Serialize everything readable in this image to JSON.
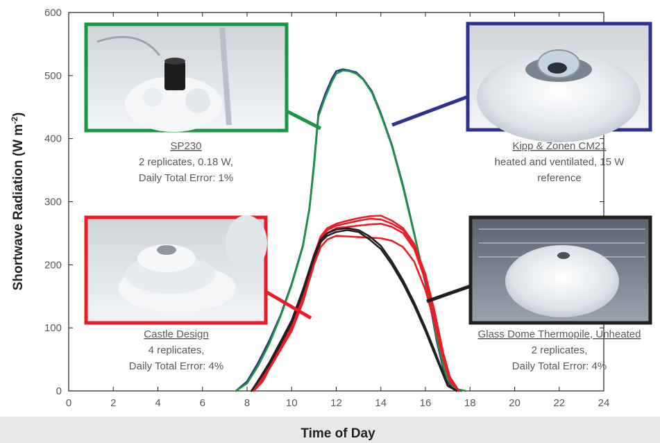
{
  "chart_data": {
    "type": "line",
    "xlabel": "Time of Day",
    "ylabel": "Shortwave Radiation (W m",
    "ylabel_sup": "-2",
    "ylabel_tail": ")",
    "xlim": [
      0,
      24
    ],
    "ylim": [
      0,
      600
    ],
    "xticks": [
      0,
      2,
      4,
      6,
      8,
      10,
      12,
      14,
      16,
      18,
      20,
      22,
      24
    ],
    "yticks": [
      0,
      100,
      200,
      300,
      400,
      500,
      600
    ],
    "grid": false,
    "series": [
      {
        "color": "#2e3192",
        "x": [
          7.5,
          8.0,
          8.5,
          9.0,
          9.5,
          10.0,
          10.5,
          10.8,
          11.0,
          11.2,
          11.5,
          11.8,
          12.0,
          12.3,
          12.6,
          12.9,
          13.2,
          13.6,
          14.0,
          14.5,
          15.0,
          15.5,
          16.0,
          16.3,
          16.5,
          16.8,
          17.0,
          17.3,
          17.6
        ],
        "y": [
          0,
          15,
          45,
          80,
          120,
          170,
          230,
          290,
          360,
          440,
          470,
          495,
          507,
          510,
          508,
          505,
          495,
          475,
          440,
          390,
          325,
          250,
          170,
          120,
          80,
          35,
          15,
          3,
          0
        ]
      },
      {
        "color": "#1a9641",
        "x": [
          7.5,
          8.0,
          8.5,
          9.0,
          9.5,
          10.0,
          10.5,
          10.8,
          11.0,
          11.2,
          11.5,
          11.8,
          12.0,
          12.3,
          12.6,
          12.9,
          13.2,
          13.6,
          14.0,
          14.5,
          15.0,
          15.5,
          16.0,
          16.3,
          16.5,
          16.8,
          17.0,
          17.3,
          17.8
        ],
        "y": [
          0,
          12,
          40,
          75,
          118,
          168,
          228,
          288,
          355,
          435,
          465,
          490,
          503,
          508,
          507,
          503,
          494,
          473,
          438,
          388,
          322,
          248,
          172,
          125,
          85,
          40,
          18,
          4,
          0
        ]
      },
      {
        "color": "#ed1c24",
        "x": [
          8.3,
          8.7,
          9.0,
          9.5,
          10.0,
          10.5,
          11.0,
          11.3,
          11.6,
          12.0,
          12.5,
          13.0,
          13.5,
          14.0,
          14.5,
          15.0,
          15.5,
          16.0,
          16.4,
          16.8,
          17.1,
          17.5
        ],
        "y": [
          0,
          15,
          35,
          65,
          95,
          140,
          200,
          228,
          240,
          246,
          245,
          244,
          243,
          242,
          238,
          228,
          205,
          160,
          110,
          50,
          15,
          0
        ]
      },
      {
        "color": "#ed1c24",
        "x": [
          8.3,
          8.7,
          9.0,
          9.5,
          10.0,
          10.5,
          11.0,
          11.3,
          11.6,
          12.0,
          12.5,
          13.0,
          13.5,
          14.0,
          14.5,
          15.0,
          15.5,
          16.0,
          16.4,
          16.8,
          17.1,
          17.5
        ],
        "y": [
          0,
          17,
          38,
          68,
          100,
          145,
          205,
          235,
          250,
          258,
          260,
          262,
          264,
          265,
          260,
          250,
          225,
          175,
          120,
          55,
          18,
          0
        ]
      },
      {
        "color": "#ed1c24",
        "x": [
          8.3,
          8.7,
          9.0,
          9.5,
          10.0,
          10.5,
          11.0,
          11.3,
          11.6,
          12.0,
          12.5,
          13.0,
          13.5,
          14.0,
          14.5,
          15.0,
          15.5,
          16.0,
          16.4,
          16.8,
          17.1,
          17.5
        ],
        "y": [
          0,
          18,
          40,
          70,
          103,
          150,
          210,
          240,
          255,
          262,
          266,
          270,
          273,
          272,
          265,
          255,
          230,
          180,
          125,
          58,
          20,
          0
        ]
      },
      {
        "color": "#ed1c24",
        "x": [
          8.3,
          8.7,
          9.0,
          9.5,
          10.0,
          10.5,
          11.0,
          11.3,
          11.6,
          12.0,
          12.5,
          13.0,
          13.5,
          14.0,
          14.5,
          15.0,
          15.5,
          16.0,
          16.4,
          16.8,
          17.1,
          17.5
        ],
        "y": [
          0,
          20,
          42,
          73,
          106,
          155,
          215,
          245,
          258,
          265,
          270,
          274,
          277,
          278,
          270,
          258,
          233,
          185,
          128,
          60,
          22,
          0
        ]
      },
      {
        "color": "#231f20",
        "x": [
          8.2,
          8.6,
          9.0,
          9.5,
          10.0,
          10.5,
          11.0,
          11.3,
          11.6,
          12.0,
          12.5,
          13.0,
          13.5,
          14.0,
          14.5,
          15.0,
          15.5,
          16.0,
          16.4,
          16.8,
          17.0,
          17.4
        ],
        "y": [
          0,
          22,
          45,
          78,
          112,
          160,
          215,
          240,
          250,
          256,
          258,
          255,
          245,
          230,
          205,
          175,
          140,
          100,
          65,
          28,
          10,
          0
        ]
      },
      {
        "color": "#231f20",
        "x": [
          8.2,
          8.6,
          9.0,
          9.5,
          10.0,
          10.5,
          11.0,
          11.3,
          11.6,
          12.0,
          12.5,
          13.0,
          13.5,
          14.0,
          14.5,
          15.0,
          15.5,
          16.0,
          16.4,
          16.8,
          17.0,
          17.4
        ],
        "y": [
          0,
          20,
          42,
          74,
          108,
          155,
          210,
          236,
          246,
          252,
          255,
          252,
          240,
          225,
          200,
          170,
          135,
          95,
          60,
          25,
          8,
          0
        ]
      }
    ],
    "annotations": [
      {
        "color": "#1a9641",
        "title": "SP230",
        "lines": [
          "2 replicates, 0.18 W,",
          "Daily Total Error: 1%"
        ]
      },
      {
        "color": "#2e3192",
        "title": "Kipp & Zonen CM21",
        "lines": [
          "heated and ventilated, 15 W",
          "reference"
        ]
      },
      {
        "color": "#ed1c24",
        "title": "Castle Design",
        "lines": [
          "4 replicates,",
          "Daily Total Error: 4%"
        ]
      },
      {
        "color": "#231f20",
        "title": "Glass Dome Thermopile, Unheated",
        "lines": [
          "2 replicates,",
          "Daily Total Error: 4%"
        ]
      }
    ]
  }
}
